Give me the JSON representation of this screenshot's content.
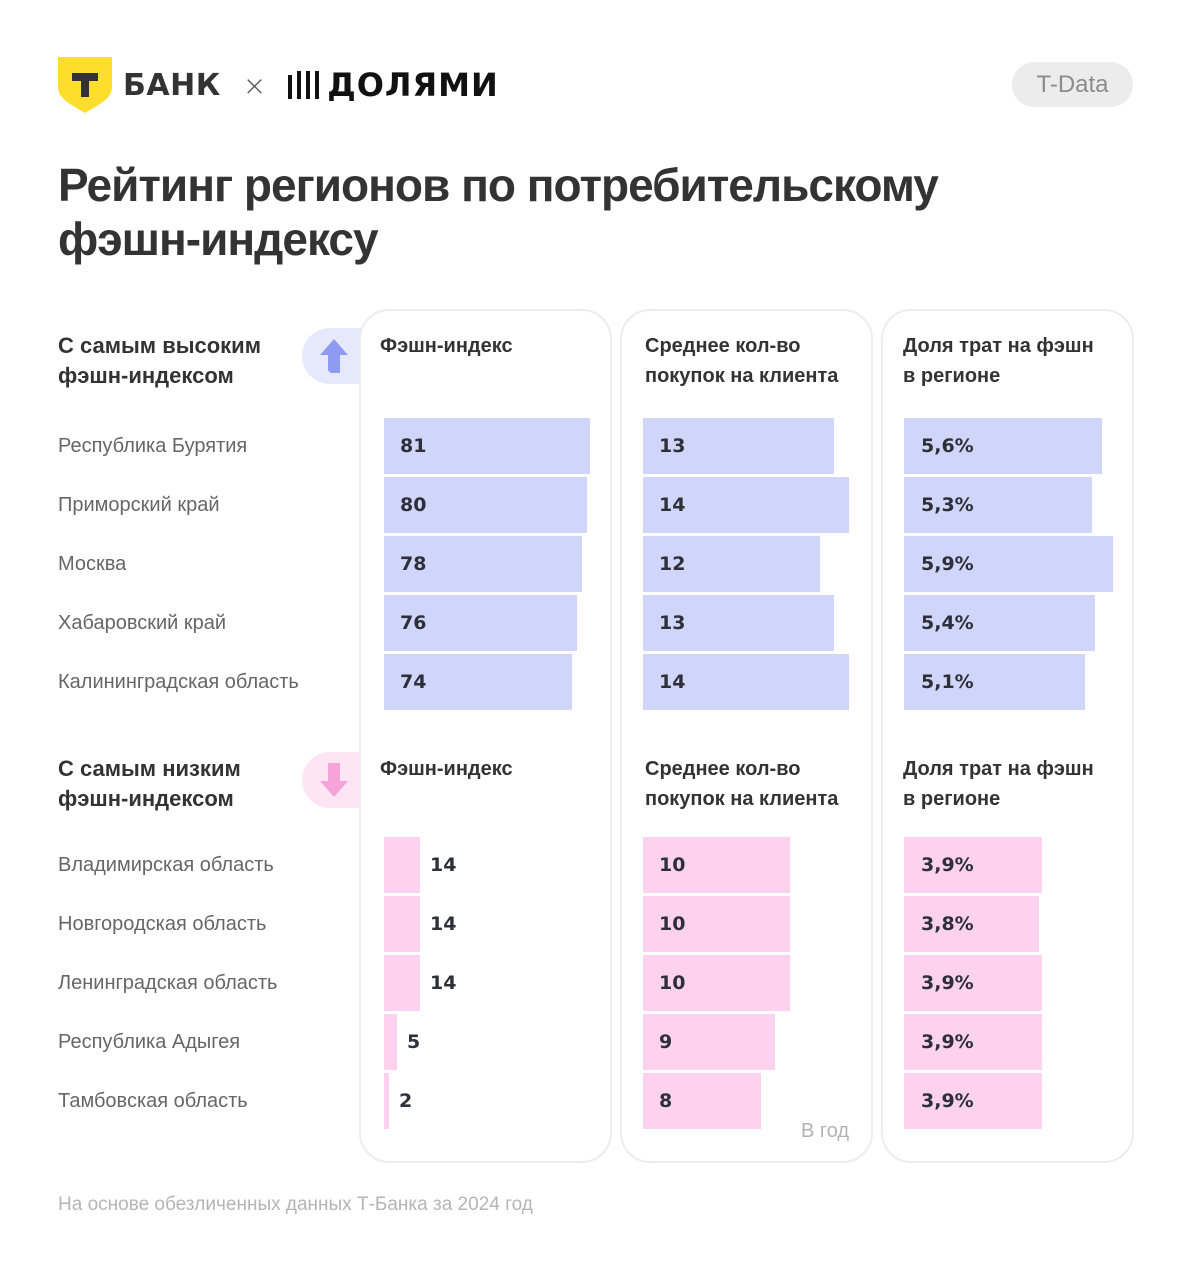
{
  "header": {
    "brand_left": "БАНК",
    "brand_left_logo_letter": "Т",
    "separator": "×",
    "brand_right": "ДОЛЯМИ",
    "badge": "T-Data"
  },
  "title": {
    "line1": "Рейтинг регионов по потребительскому",
    "line2": "фэшн-индексу"
  },
  "colors": {
    "high_bar": "#d0d5fa",
    "high_pill": "#e6e8fc",
    "high_arrow": "#8f9bf2",
    "low_bar": "#fcd2ef",
    "low_pill": "#fde5f5",
    "low_arrow": "#f5a3d8",
    "logo_yellow": "#ffdd2d"
  },
  "columns": [
    {
      "key": "index",
      "title_line1": "Фэшн-индекс",
      "title_line2": ""
    },
    {
      "key": "purchases",
      "title_line1": "Среднее кол-во",
      "title_line2": "покупок на клиента"
    },
    {
      "key": "share",
      "title_line1": "Доля трат на фэшн",
      "title_line2": "в регионе"
    }
  ],
  "chart_data": [
    {
      "type": "bar",
      "title": "С самым высоким фэшн-индексом",
      "title_line1": "С самым высоким",
      "title_line2": "фэшн-индексом",
      "categories": [
        "Республика Бурятия",
        "Приморский край",
        "Москва",
        "Хабаровский край",
        "Калининградская область"
      ],
      "series": [
        {
          "name": "Фэшн-индекс",
          "values": [
            81,
            80,
            78,
            76,
            74
          ],
          "labels": [
            "81",
            "80",
            "78",
            "76",
            "74"
          ],
          "max": 81
        },
        {
          "name": "Среднее кол-во покупок на клиента",
          "values": [
            13,
            14,
            12,
            13,
            14
          ],
          "labels": [
            "13",
            "14",
            "12",
            "13",
            "14"
          ],
          "max": 14
        },
        {
          "name": "Доля трат на фэшн в регионе",
          "values": [
            5.6,
            5.3,
            5.9,
            5.4,
            5.1
          ],
          "labels": [
            "5,6%",
            "5,3%",
            "5,9%",
            "5,4%",
            "5,1%"
          ],
          "max": 5.9
        }
      ]
    },
    {
      "type": "bar",
      "title": "С самым низким фэшн-индексом",
      "title_line1": "С самым низким",
      "title_line2": "фэшн-индексом",
      "categories": [
        "Владимирская область",
        "Новгородская область",
        "Ленинградская область",
        "Республика Адыгея",
        "Тамбовская область"
      ],
      "series": [
        {
          "name": "Фэшн-индекс",
          "values": [
            14,
            14,
            14,
            5,
            2
          ],
          "labels": [
            "14",
            "14",
            "14",
            "5",
            "2"
          ],
          "max": 81
        },
        {
          "name": "Среднее кол-во покупок на клиента",
          "values": [
            10,
            10,
            10,
            9,
            8
          ],
          "labels": [
            "10",
            "10",
            "10",
            "9",
            "8"
          ],
          "max": 14
        },
        {
          "name": "Доля трат на фэшн в регионе",
          "values": [
            3.9,
            3.8,
            3.9,
            3.9,
            3.9
          ],
          "labels": [
            "3,9%",
            "3,8%",
            "3,9%",
            "3,9%",
            "3,9%"
          ],
          "max": 5.9
        }
      ],
      "note": "В год"
    }
  ],
  "footer": "На основе обезличенных данных Т-Банка за 2024 год"
}
